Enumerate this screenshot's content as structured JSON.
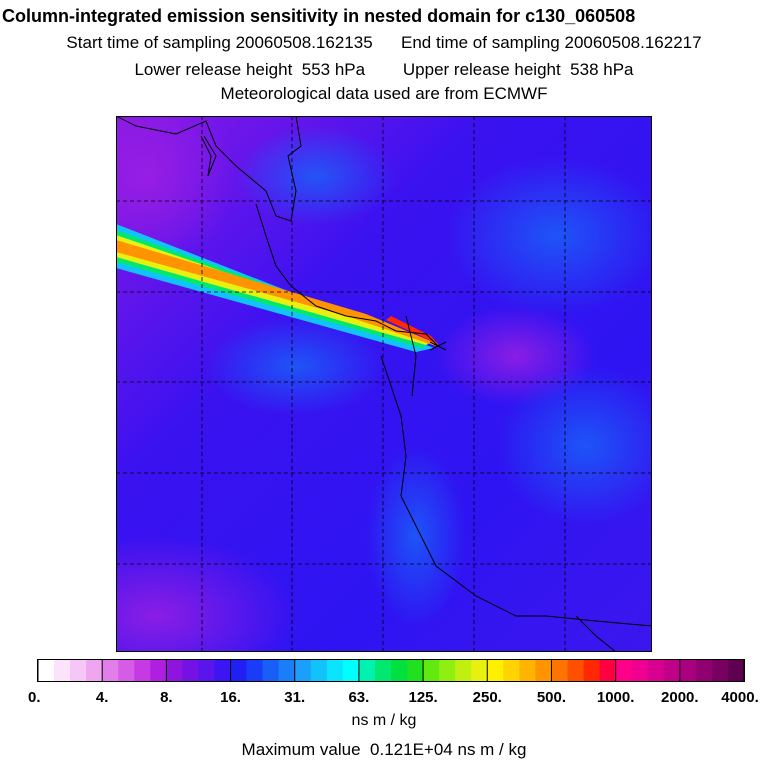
{
  "header": {
    "title": "Column-integrated emission sensitivity in nested domain for c130_060508",
    "start_label": "Start time of sampling",
    "start_value": "20060508.162135",
    "end_label": "End time of sampling",
    "end_value": "20060508.162217",
    "lower_label": "Lower release height",
    "lower_value": "553 hPa",
    "upper_label": "Upper release height",
    "upper_value": "538 hPa",
    "met_text": "Meteorological data used are from ECMWF"
  },
  "chart_data": {
    "type": "heatmap",
    "title": "Column-integrated emission sensitivity in nested domain for c130_060508",
    "background_level": "8.-16.",
    "plume": {
      "direction": "from release point toward west-northwest",
      "peak_range": "1000.-2000.",
      "source_marker": "release location"
    },
    "grid": true,
    "colorbar": {
      "labels": [
        "0.",
        "4.",
        "8.",
        "16.",
        "31.",
        "63.",
        "125.",
        "250.",
        "500.",
        "1000.",
        "2000.",
        "4000."
      ],
      "colors": [
        "#ffffff",
        "#fbe4fb",
        "#f6c6f6",
        "#efa6ef",
        "#e07fe9",
        "#d45ce6",
        "#c63ae3",
        "#b01ee0",
        "#8f14e0",
        "#7412e6",
        "#5a14ec",
        "#3d14f2",
        "#2020f5",
        "#1a3cf7",
        "#1a5ef8",
        "#1a7ef9",
        "#1aa0fa",
        "#12c2fb",
        "#0ae4fc",
        "#00ffff",
        "#00f2b0",
        "#00e870",
        "#00e040",
        "#20e020",
        "#60ea10",
        "#90ee10",
        "#c0f010",
        "#e8f010",
        "#fff000",
        "#ffd400",
        "#ffb400",
        "#ff9400",
        "#ff7400",
        "#ff5000",
        "#ff2800",
        "#ff0040",
        "#ff0088",
        "#f00090",
        "#d80090",
        "#c00088",
        "#a8007e",
        "#900070",
        "#780060",
        "#600050"
      ],
      "units": "ns m / kg"
    },
    "maximum_label": "Maximum value",
    "maximum_value": "0.121E+04",
    "maximum_units": "ns m / kg"
  }
}
